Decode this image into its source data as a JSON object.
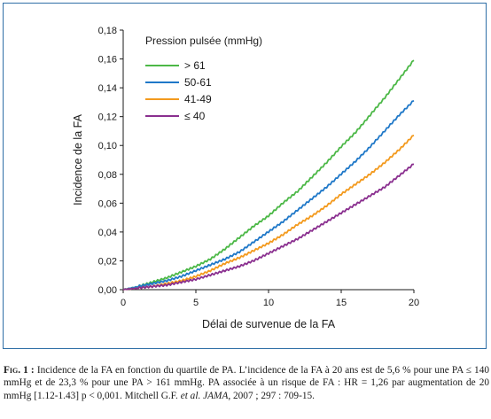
{
  "chart_data": {
    "type": "line",
    "title": "",
    "xlabel": "Délai de survenue de la FA",
    "ylabel": "Incidence de la FA",
    "xlim": [
      0,
      20
    ],
    "ylim": [
      0,
      0.18
    ],
    "x_ticks": [
      "0",
      "5",
      "10",
      "15",
      "20"
    ],
    "y_ticks": [
      "0,00",
      "0,02",
      "0,04",
      "0,06",
      "0,08",
      "0,10",
      "0,12",
      "0,14",
      "0,16",
      "0,18"
    ],
    "grid": false,
    "legend_title": "Pression pulsée (mmHg)",
    "legend_position": "top-left",
    "series": [
      {
        "name": "> 61",
        "color": "#4cb847",
        "x": [
          0,
          1,
          2,
          3,
          4,
          5,
          6,
          7,
          8,
          9,
          10,
          11,
          12,
          13,
          14,
          15,
          16,
          17,
          18,
          19,
          20
        ],
        "y": [
          0.0,
          0.002,
          0.005,
          0.008,
          0.012,
          0.016,
          0.021,
          0.028,
          0.036,
          0.044,
          0.051,
          0.06,
          0.068,
          0.078,
          0.088,
          0.099,
          0.109,
          0.121,
          0.133,
          0.146,
          0.159
        ]
      },
      {
        "name": "50-61",
        "color": "#1f78c8",
        "x": [
          0,
          1,
          2,
          3,
          4,
          5,
          6,
          7,
          8,
          9,
          10,
          11,
          12,
          13,
          14,
          15,
          16,
          17,
          18,
          19,
          20
        ],
        "y": [
          0.0,
          0.002,
          0.004,
          0.006,
          0.009,
          0.013,
          0.017,
          0.021,
          0.026,
          0.033,
          0.04,
          0.047,
          0.055,
          0.063,
          0.071,
          0.08,
          0.089,
          0.099,
          0.11,
          0.121,
          0.131
        ]
      },
      {
        "name": "41-49",
        "color": "#f39a1e",
        "x": [
          0,
          1,
          2,
          3,
          4,
          5,
          6,
          7,
          8,
          9,
          10,
          11,
          12,
          13,
          14,
          15,
          16,
          17,
          18,
          19,
          20
        ],
        "y": [
          0.0,
          0.001,
          0.002,
          0.004,
          0.006,
          0.009,
          0.013,
          0.018,
          0.022,
          0.027,
          0.032,
          0.038,
          0.045,
          0.051,
          0.058,
          0.066,
          0.073,
          0.08,
          0.088,
          0.097,
          0.107
        ]
      },
      {
        "name": "≤ 40",
        "color": "#8a2f8f",
        "x": [
          0,
          1,
          2,
          3,
          4,
          5,
          6,
          7,
          8,
          9,
          10,
          11,
          12,
          13,
          14,
          15,
          16,
          17,
          18,
          19,
          20
        ],
        "y": [
          0.0,
          0.001,
          0.002,
          0.003,
          0.005,
          0.007,
          0.01,
          0.013,
          0.016,
          0.02,
          0.025,
          0.03,
          0.035,
          0.041,
          0.047,
          0.053,
          0.059,
          0.065,
          0.071,
          0.079,
          0.087
        ]
      }
    ]
  },
  "caption": {
    "fig_label": "Fig. 1 :",
    "text_1": " Incidence de la FA en fonction du quartile de PA. L’incidence de la FA à 20 ans est de 5,6 % pour une PA ≤ 140 mmHg et de 23,3 % pour une PA > 161 mmHg. PA associée à un risque de FA : HR = 1,26 par augmentation de 20 mmHg [1.12-1.43] p < 0,001. Mitchell G.F. ",
    "et_al": "et al.",
    "journal": "JAMA",
    "text_2": ", 2007 ; 297 : 709-15."
  }
}
